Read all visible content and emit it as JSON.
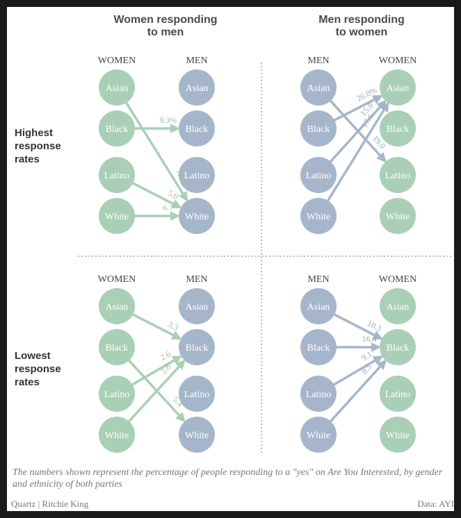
{
  "colors": {
    "women_node": "#a9cfb6",
    "men_node": "#a6b6ca",
    "women_arrow": "#a9cfb6",
    "men_arrow": "#a6b6ca",
    "women_label": "#96bfa3",
    "men_label": "#97a8bd"
  },
  "column_titles": {
    "left": [
      "Women responding",
      "to men"
    ],
    "right": [
      "Men responding",
      "to women"
    ]
  },
  "row_labels": {
    "top": [
      "Highest",
      "response",
      "rates"
    ],
    "bottom": [
      "Lowest",
      "response",
      "rates"
    ]
  },
  "panels": [
    {
      "id": "highest-women",
      "source_header": "WOMEN",
      "target_header": "MEN",
      "source_gender": "women",
      "target_gender": "men",
      "ethnicities": [
        "Asian",
        "Black",
        "Latino",
        "White"
      ],
      "edges": [
        {
          "from": "Black",
          "to": "Black",
          "label": "9.3%"
        },
        {
          "from": "Asian",
          "to": "White",
          "label": "7.8"
        },
        {
          "from": "Latino",
          "to": "White",
          "label": "5.0"
        },
        {
          "from": "White",
          "to": "White",
          "label": "6.7"
        }
      ]
    },
    {
      "id": "highest-men",
      "source_header": "MEN",
      "target_header": "WOMEN",
      "source_gender": "men",
      "target_gender": "women",
      "ethnicities": [
        "Asian",
        "Black",
        "Latino",
        "White"
      ],
      "edges": [
        {
          "from": "Black",
          "to": "Asian",
          "label": "26.0%"
        },
        {
          "from": "Latino",
          "to": "Asian",
          "label": "15.8"
        },
        {
          "from": "White",
          "to": "Asian",
          "label": "17.6"
        },
        {
          "from": "Asian",
          "to": "Latino",
          "label": "19.0"
        }
      ]
    },
    {
      "id": "lowest-women",
      "source_header": "WOMEN",
      "target_header": "MEN",
      "source_gender": "women",
      "target_gender": "men",
      "ethnicities": [
        "Asian",
        "Black",
        "Latino",
        "White"
      ],
      "edges": [
        {
          "from": "Asian",
          "to": "Black",
          "label": "3.3"
        },
        {
          "from": "Latino",
          "to": "Black",
          "label": "2.6"
        },
        {
          "from": "White",
          "to": "Black",
          "label": "2.8"
        },
        {
          "from": "Black",
          "to": "White",
          "label": "5.4"
        }
      ]
    },
    {
      "id": "lowest-men",
      "source_header": "MEN",
      "target_header": "WOMEN",
      "source_gender": "men",
      "target_gender": "women",
      "ethnicities": [
        "Asian",
        "Black",
        "Latino",
        "White"
      ],
      "edges": [
        {
          "from": "Asian",
          "to": "Black",
          "label": "10.3"
        },
        {
          "from": "Black",
          "to": "Black",
          "label": "16.4"
        },
        {
          "from": "Latino",
          "to": "Black",
          "label": "9.1"
        },
        {
          "from": "White",
          "to": "Black",
          "label": "8.5"
        }
      ]
    }
  ],
  "caption": "The numbers shown represent the percentage of people responding to a \"yes\" on Are You Interested, by gender and ethnicity of both parties",
  "source": "Quartz | Ritchie King",
  "data_credit": "Data: AYI"
}
